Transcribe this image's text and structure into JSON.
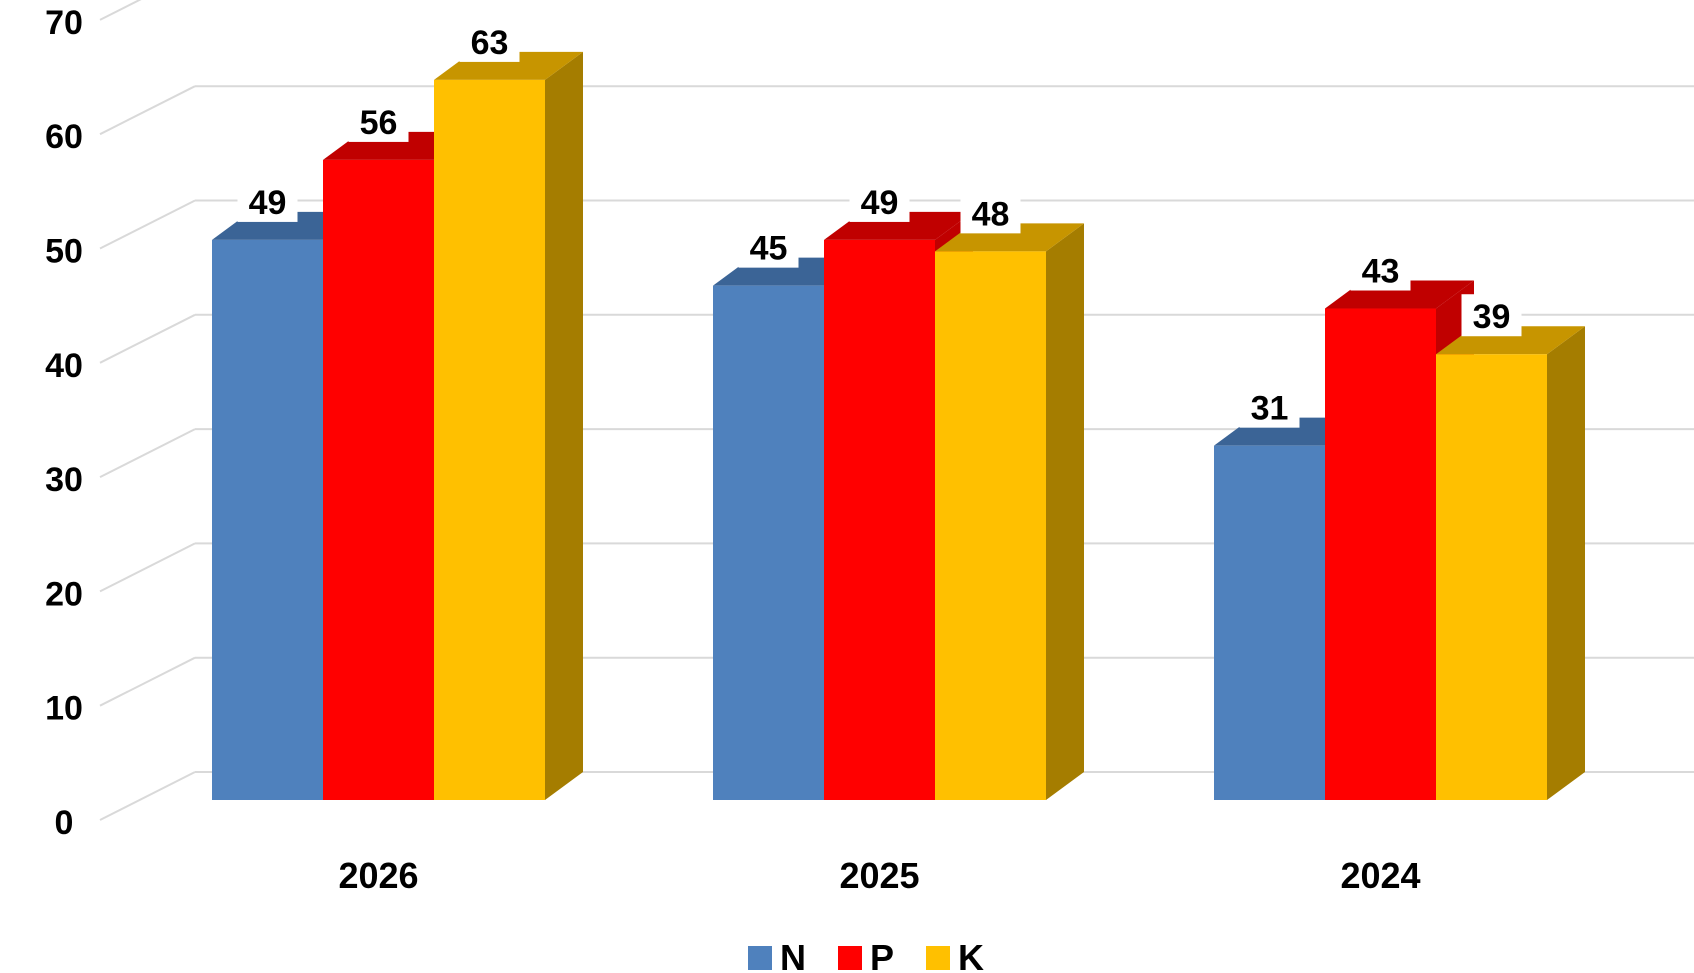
{
  "chart_data": {
    "type": "bar",
    "style": "3d-clustered-column",
    "title": "",
    "xlabel": "",
    "ylabel": "",
    "ylim": [
      0,
      70
    ],
    "yticks": [
      0,
      10,
      20,
      30,
      40,
      50,
      60,
      70
    ],
    "grid": true,
    "legend": "bottom",
    "data_labels": true,
    "categories": [
      "2026",
      "2025",
      "2024"
    ],
    "series": [
      {
        "name": "N",
        "color": "#4f81bd",
        "top_color": "#3b6496",
        "side_color": "#3b6496",
        "values": [
          49,
          45,
          31
        ]
      },
      {
        "name": "P",
        "color": "#ff0000",
        "top_color": "#c00000",
        "side_color": "#c00000",
        "values": [
          56,
          49,
          43
        ]
      },
      {
        "name": "K",
        "color": "#ffc000",
        "top_color": "#c79500",
        "side_color": "#a57d00",
        "values": [
          63,
          48,
          39
        ]
      }
    ]
  }
}
